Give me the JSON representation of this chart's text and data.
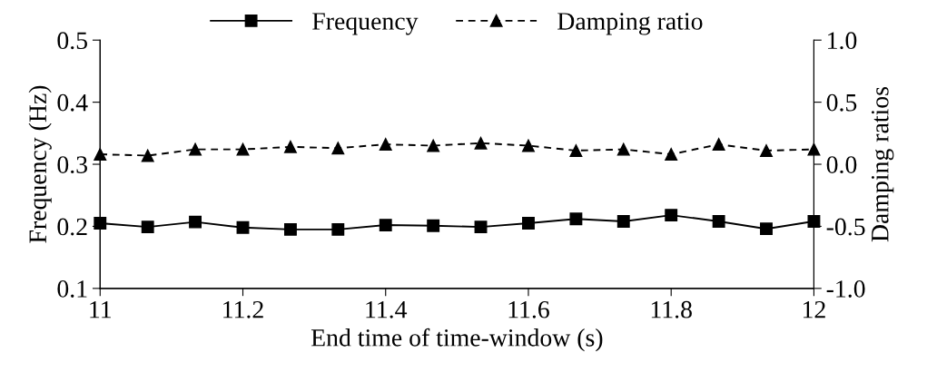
{
  "chart_data": {
    "type": "line",
    "xlabel": "End time of time-window (s)",
    "ylabel": "Frequency (Hz)",
    "y2label": "Damping ratios",
    "x": [
      11,
      11.0667,
      11.1333,
      11.2,
      11.2667,
      11.3333,
      11.4,
      11.4667,
      11.5333,
      11.6,
      11.6667,
      11.7333,
      11.8,
      11.8667,
      11.9333,
      12
    ],
    "series": [
      {
        "name": "Frequency",
        "color": "#000000",
        "marker": "square",
        "line_style": "solid",
        "values": [
          0.205,
          0.199,
          0.207,
          0.198,
          0.195,
          0.195,
          0.202,
          0.201,
          0.199,
          0.205,
          0.212,
          0.208,
          0.218,
          0.208,
          0.196,
          0.208
        ]
      },
      {
        "name": "Damping ratio",
        "color": "#000000",
        "marker": "triangle",
        "line_style": "dashed",
        "axis": "y2",
        "values": [
          0.08,
          0.07,
          0.12,
          0.12,
          0.14,
          0.13,
          0.16,
          0.15,
          0.17,
          0.15,
          0.11,
          0.12,
          0.08,
          0.16,
          0.11,
          0.12
        ]
      }
    ],
    "xlim": [
      11,
      12
    ],
    "xticks": [
      11,
      11.2,
      11.4,
      11.6,
      11.8,
      12
    ],
    "ylim": [
      0.1,
      0.5
    ],
    "yticks": [
      0.1,
      0.2,
      0.3,
      0.4,
      0.5
    ],
    "y2lim": [
      -1,
      1
    ],
    "y2ticks": [
      {
        "value": -1,
        "label": "-1.0"
      },
      {
        "value": -0.5,
        "label": "-0.5"
      },
      {
        "value": 0,
        "label": "0.0"
      },
      {
        "value": 0.5,
        "label": "0.5"
      },
      {
        "value": 1,
        "label": "1.0"
      }
    ],
    "grid": false,
    "legend": "top"
  }
}
